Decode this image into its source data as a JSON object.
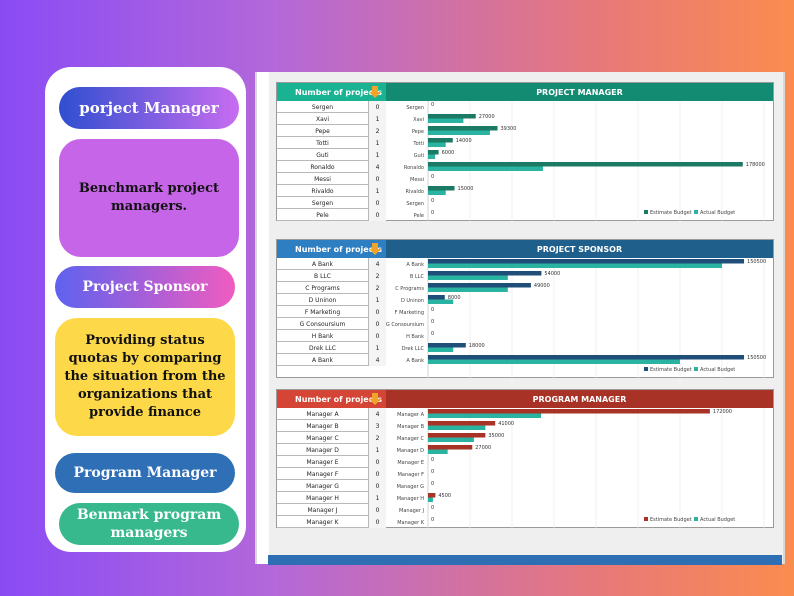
{
  "left_panel": {
    "pill1": "porject Manager",
    "pill2": "Benchmark project managers.",
    "pill3": "Project Sponsor",
    "pill4": "Providing status quotas by comparing the situation from the organizations that provide finance",
    "pill5": "Program Manager",
    "pill6": "Benmark program managers"
  },
  "colors": {
    "pm_header": "#138a72",
    "pm_header_left": "#19b394",
    "ps_header": "#1f5f8b",
    "ps_header_left": "#2e7fc2",
    "prog_header": "#a93226",
    "prog_header_left": "#d44535",
    "estimate_pm": "#1a7a64",
    "estimate_ps": "#1f4e79",
    "estimate_prog": "#a93226",
    "actual": "#2ab3a0",
    "arrow": "#f2a32b"
  },
  "sections": [
    {
      "count_header": "Number of projects",
      "title": "PROJECT MANAGER",
      "rows": [
        {
          "name": "Sergen",
          "count": "0"
        },
        {
          "name": "Xavi",
          "count": "1"
        },
        {
          "name": "Pepe",
          "count": "2"
        },
        {
          "name": "Totti",
          "count": "1"
        },
        {
          "name": "Guti",
          "count": "1"
        },
        {
          "name": "Ronaldo",
          "count": "4"
        },
        {
          "name": "Messi",
          "count": "0"
        },
        {
          "name": "Rivaldo",
          "count": "1"
        },
        {
          "name": "Sergen",
          "count": "0"
        },
        {
          "name": "Pele",
          "count": "0"
        }
      ]
    },
    {
      "count_header": "Number of projects",
      "title": "PROJECT SPONSOR",
      "rows": [
        {
          "name": "A Bank",
          "count": "4"
        },
        {
          "name": "B LLC",
          "count": "2"
        },
        {
          "name": "C Programs",
          "count": "2"
        },
        {
          "name": "D Uninon",
          "count": "1"
        },
        {
          "name": "F Marketing",
          "count": "0"
        },
        {
          "name": "G Consoursium",
          "count": "0"
        },
        {
          "name": "H Bank",
          "count": "0"
        },
        {
          "name": "Drek LLC",
          "count": "1"
        },
        {
          "name": "A Bank",
          "count": "4"
        }
      ]
    },
    {
      "count_header": "Number of projects",
      "title": "PROGRAM MANAGER",
      "rows": [
        {
          "name": "Manager A",
          "count": "4"
        },
        {
          "name": "Manager B",
          "count": "3"
        },
        {
          "name": "Manager C",
          "count": "2"
        },
        {
          "name": "Manager D",
          "count": "1"
        },
        {
          "name": "Manager E",
          "count": "0"
        },
        {
          "name": "Manager F",
          "count": "0"
        },
        {
          "name": "Manager G",
          "count": "0"
        },
        {
          "name": "Manager H",
          "count": "1"
        },
        {
          "name": "Manager J",
          "count": "0"
        },
        {
          "name": "Manager K",
          "count": "0"
        }
      ]
    }
  ],
  "chart_data": [
    {
      "type": "bar",
      "orientation": "horizontal",
      "title": "PROJECT MANAGER",
      "categories": [
        "Sergen",
        "Xavi",
        "Pepe",
        "Totti",
        "Guti",
        "Ronaldo",
        "Messi",
        "Rivaldo",
        "Sergen",
        "Pele"
      ],
      "series": [
        {
          "name": "Estimate Budget",
          "values": [
            0,
            27000,
            39300,
            14000,
            6000,
            178000,
            0,
            15000,
            0,
            0
          ]
        },
        {
          "name": "Actual Budget",
          "values": [
            0,
            20000,
            35000,
            10000,
            4000,
            65000,
            0,
            10000,
            0,
            0
          ]
        }
      ],
      "value_labels": [
        "0",
        "27000",
        "39300",
        "14000",
        "6000",
        "178000",
        "0",
        "15000",
        "0",
        "0"
      ],
      "xlim": [
        0,
        190000
      ],
      "legend": "bottom-right",
      "grid": true
    },
    {
      "type": "bar",
      "orientation": "horizontal",
      "title": "PROJECT SPONSOR",
      "categories": [
        "A Bank",
        "B LLC",
        "C Programs",
        "D Uninon",
        "F Marketing",
        "G Consoursium",
        "H Bank",
        "Drek LLC",
        "A Bank"
      ],
      "series": [
        {
          "name": "Estimate Budget",
          "values": [
            150500,
            54000,
            49000,
            8000,
            0,
            0,
            0,
            18000,
            150500
          ]
        },
        {
          "name": "Actual Budget",
          "values": [
            140000,
            38000,
            38000,
            12000,
            0,
            0,
            0,
            12000,
            120000
          ]
        }
      ],
      "value_labels": [
        "150500",
        "54000",
        "49000",
        "8000",
        "0",
        "0",
        "0",
        "18000",
        "150500"
      ],
      "xlim": [
        0,
        160000
      ],
      "legend": "bottom-right",
      "grid": true
    },
    {
      "type": "bar",
      "orientation": "horizontal",
      "title": "PROGRAM MANAGER",
      "categories": [
        "Manager A",
        "Manager B",
        "Manager C",
        "Manager D",
        "Manager E",
        "Manager F",
        "Manager G",
        "Manager H",
        "Manager J",
        "Manager K"
      ],
      "series": [
        {
          "name": "Estimate Budget",
          "values": [
            172000,
            41000,
            35000,
            27000,
            0,
            0,
            0,
            4500,
            0,
            0
          ]
        },
        {
          "name": "Actual Budget",
          "values": [
            69000,
            35000,
            28000,
            12000,
            0,
            0,
            0,
            3000,
            0,
            0
          ]
        }
      ],
      "value_labels": [
        "172000",
        "41000",
        "35000",
        "27000",
        "0",
        "0",
        "0",
        "4500",
        "0",
        "0"
      ],
      "xlim": [
        0,
        205000
      ],
      "legend": "bottom-right",
      "grid": true
    }
  ]
}
